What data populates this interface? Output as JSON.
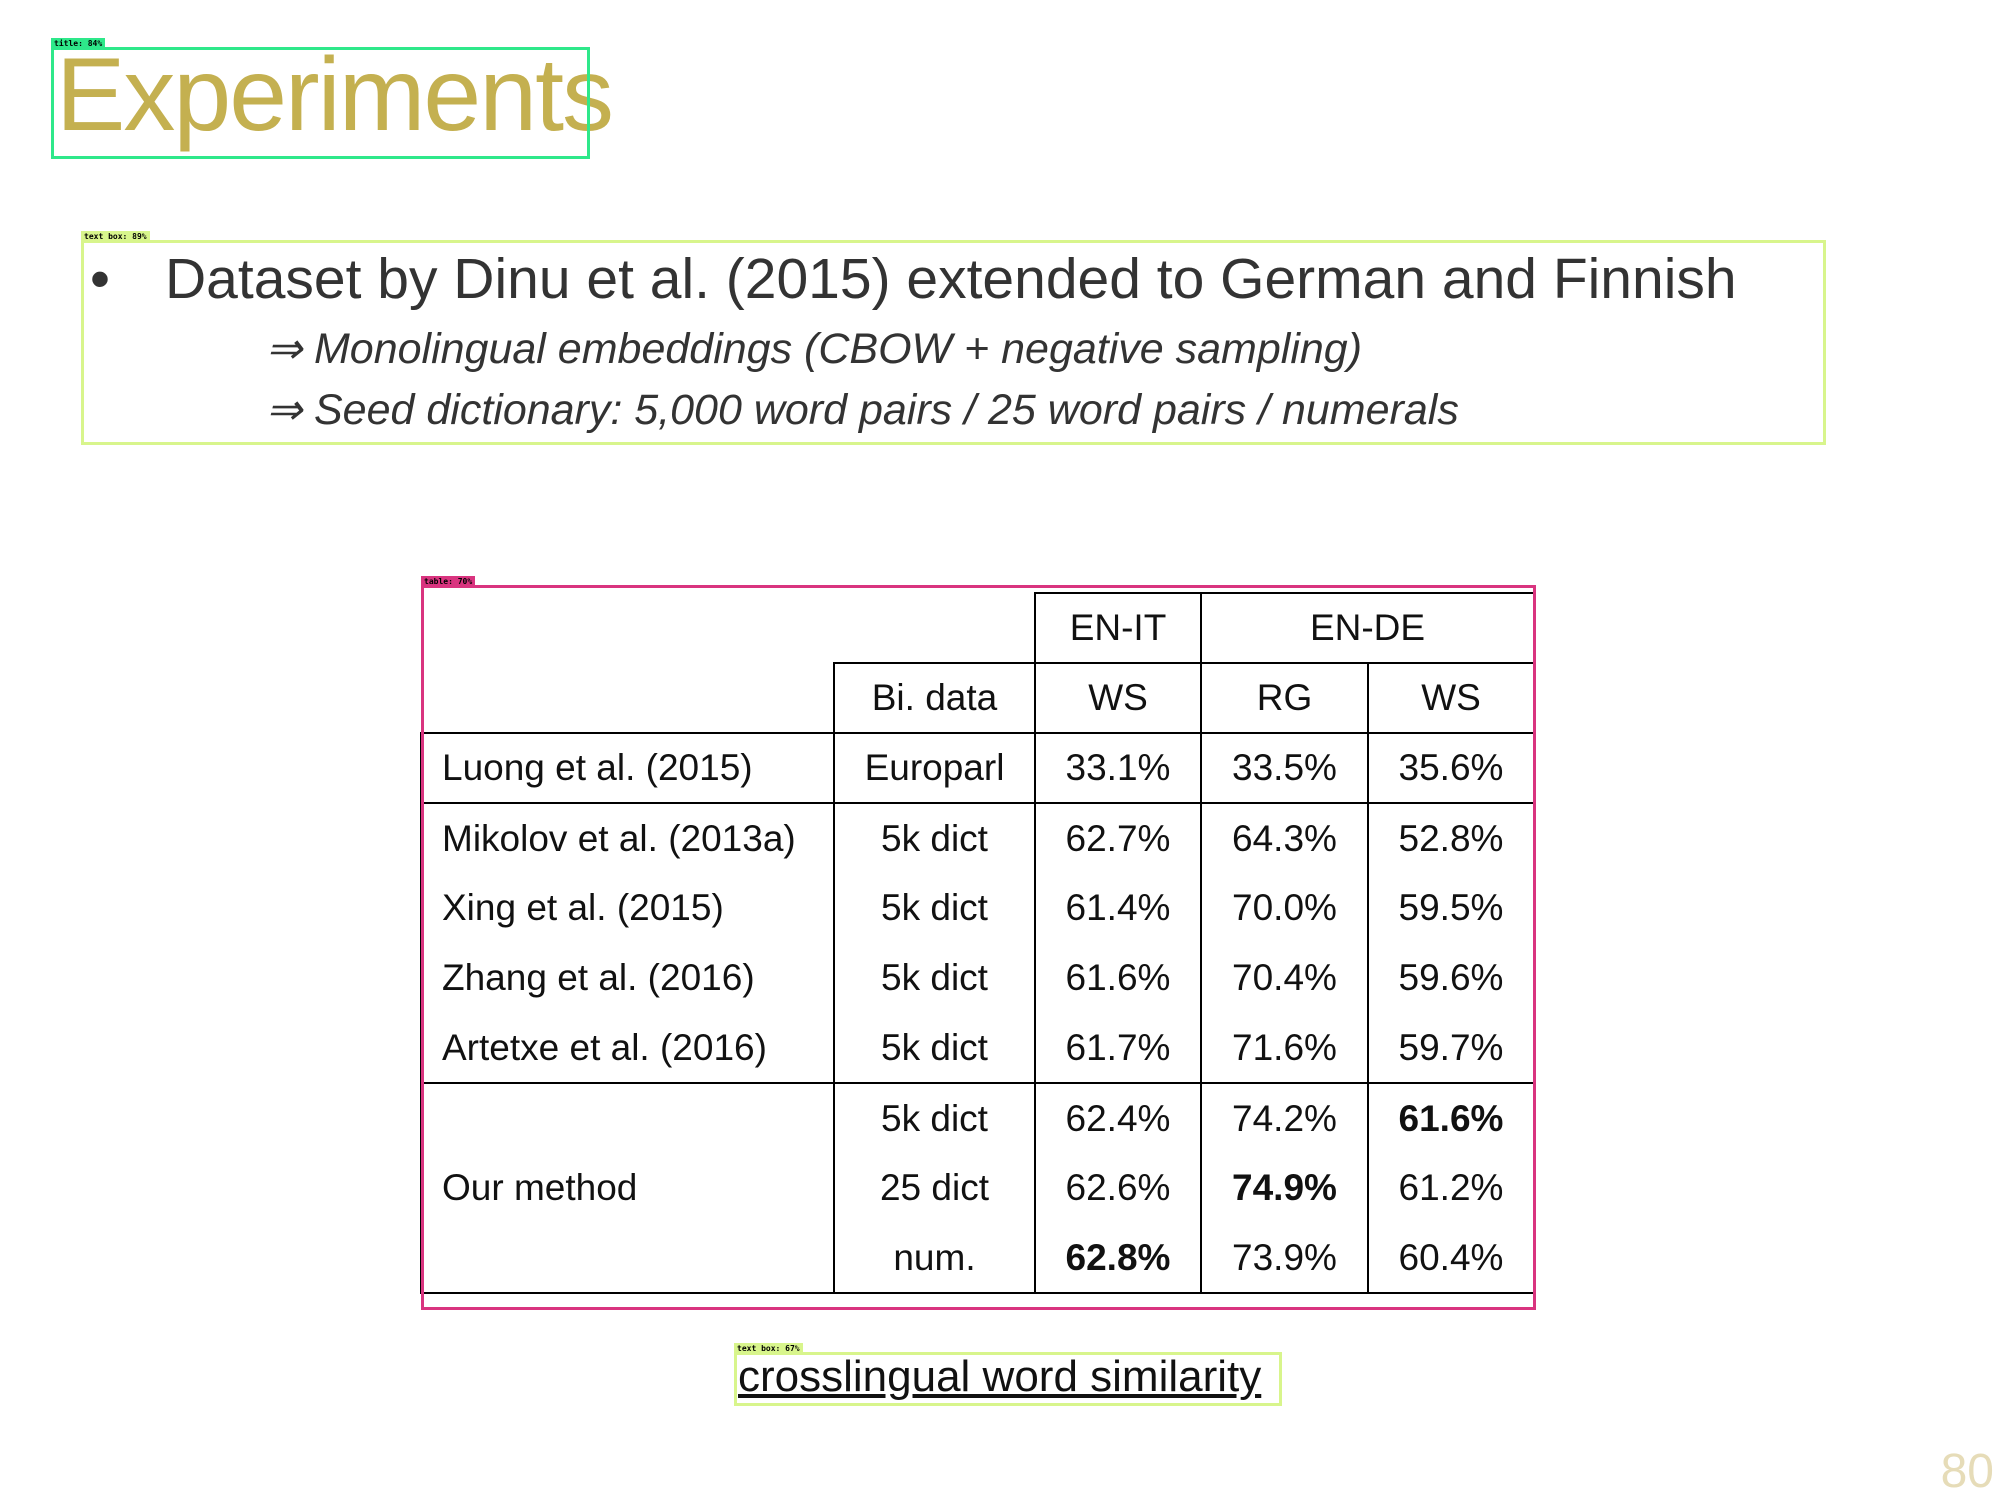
{
  "slide": {
    "title": "Experiments",
    "bullet_symbol": "•",
    "bullet": "Dataset by Dinu et al. (2015) extended to German and Finnish",
    "sub_points": [
      "⇒ Monolingual embeddings (CBOW + negative sampling)",
      "⇒ Seed dictionary:  5,000 word pairs / 25 word pairs / numerals"
    ],
    "caption": "crosslingual word similarity",
    "page_number": "80"
  },
  "table": {
    "group_headers": [
      "EN-IT",
      "EN-DE"
    ],
    "column_headers": [
      "Bi. data",
      "WS",
      "RG",
      "WS"
    ],
    "rows": [
      {
        "method": "Luong et al. (2015)",
        "bi_data": "Europarl",
        "en_it_ws": "33.1%",
        "en_de_rg": "33.5%",
        "en_de_ws": "35.6%"
      },
      {
        "method": "Mikolov et al. (2013a)",
        "bi_data": "5k dict",
        "en_it_ws": "62.7%",
        "en_de_rg": "64.3%",
        "en_de_ws": "52.8%"
      },
      {
        "method": "Xing et al. (2015)",
        "bi_data": "5k dict",
        "en_it_ws": "61.4%",
        "en_de_rg": "70.0%",
        "en_de_ws": "59.5%"
      },
      {
        "method": "Zhang et al. (2016)",
        "bi_data": "5k dict",
        "en_it_ws": "61.6%",
        "en_de_rg": "70.4%",
        "en_de_ws": "59.6%"
      },
      {
        "method": "Artetxe et al. (2016)",
        "bi_data": "5k dict",
        "en_it_ws": "61.7%",
        "en_de_rg": "71.6%",
        "en_de_ws": "59.7%"
      }
    ],
    "our_method": {
      "label": "Our method",
      "rows": [
        {
          "bi_data": "5k dict",
          "en_it_ws": "62.4%",
          "en_de_rg": "74.2%",
          "en_de_ws": "61.6%"
        },
        {
          "bi_data": "25 dict",
          "en_it_ws": "62.6%",
          "en_de_rg": "74.9%",
          "en_de_ws": "61.2%"
        },
        {
          "bi_data": "num.",
          "en_it_ws": "62.8%",
          "en_de_rg": "73.9%",
          "en_de_ws": "60.4%"
        }
      ]
    }
  },
  "detections": [
    {
      "label": "title: 84%",
      "color": "#2ee88a"
    },
    {
      "label": "text box: 89%",
      "color": "#d8f58c"
    },
    {
      "label": "table: 70%",
      "color": "#d9347f"
    },
    {
      "label": "text box: 67%",
      "color": "#d8f58c"
    }
  ],
  "colors": {
    "title": "#c4b050",
    "body_text": "#333333",
    "page_number": "#e6dcb8"
  }
}
